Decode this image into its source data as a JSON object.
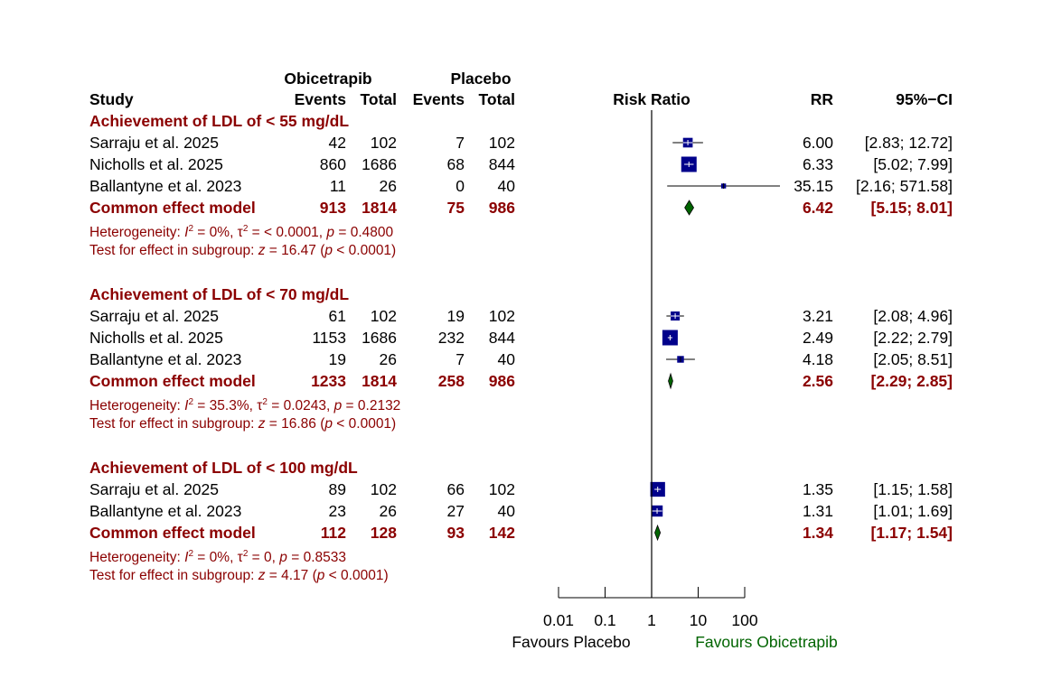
{
  "chart_data": {
    "type": "forest",
    "title": "",
    "xlabel": "Risk Ratio",
    "scale": "log",
    "xlim": [
      0.01,
      100
    ],
    "xticks": [
      "0.01",
      "0.1",
      "1",
      "10",
      "100"
    ],
    "xtick_values": [
      0.01,
      0.1,
      1,
      10,
      100
    ],
    "favours_left": "Favours Placebo",
    "favours_right": "Favours Obicetrapib",
    "header": {
      "group1": "Obicetrapib",
      "group2": "Placebo",
      "study": "Study",
      "events": "Events",
      "total": "Total",
      "effect": "Risk Ratio",
      "rr": "RR",
      "ci": "95%−CI"
    },
    "subgroups": [
      {
        "name": "Achievement of LDL of < 55 mg/dL",
        "studies": [
          {
            "study": "Sarraju et al. 2025",
            "e1": "42",
            "n1": "102",
            "e2": "7",
            "n2": "102",
            "rr_text": "6.00",
            "ci_text": "[2.83; 12.72]",
            "rr": 6.0,
            "lo": 2.83,
            "hi": 12.72,
            "weight": 0.3
          },
          {
            "study": "Nicholls et al. 2025",
            "e1": "860",
            "n1": "1686",
            "e2": "68",
            "n2": "844",
            "rr_text": "6.33",
            "ci_text": "[5.02;  7.99]",
            "rr": 6.33,
            "lo": 5.02,
            "hi": 7.99,
            "weight": 1.0
          },
          {
            "study": "Ballantyne et al. 2023",
            "e1": "11",
            "n1": "26",
            "e2": "0",
            "n2": "40",
            "rr_text": "35.15",
            "ci_text": "[2.16; 571.58]",
            "rr": 35.15,
            "lo": 2.16,
            "hi": 571.58,
            "weight": 0.03
          }
        ],
        "common": {
          "label": "Common effect model",
          "e1": "913",
          "n1": "1814",
          "e2": "75",
          "n2": "986",
          "rr_text": "6.42",
          "ci_text": "[5.15;  8.01]",
          "rr": 6.42,
          "lo": 5.15,
          "hi": 8.01
        },
        "het_prefix": "Heterogeneity: ",
        "het_i2": "I",
        "het_i2_value": " = 0%, ",
        "het_tau": "τ",
        "het_tau_value": " = < 0.0001, ",
        "het_p": "p",
        "het_p_value": " = 0.4800",
        "test_prefix": "Test for effect in subgroup: ",
        "test_z": "z",
        "test_z_value": " = 16.47 (",
        "test_p": "p",
        "test_p_value": " < 0.0001)"
      },
      {
        "name": "Achievement of LDL of < 70 mg/dL",
        "studies": [
          {
            "study": "Sarraju et al. 2025",
            "e1": "61",
            "n1": "102",
            "e2": "19",
            "n2": "102",
            "rr_text": "3.21",
            "ci_text": "[2.08;  4.96]",
            "rr": 3.21,
            "lo": 2.08,
            "hi": 4.96,
            "weight": 0.25
          },
          {
            "study": "Nicholls et al. 2025",
            "e1": "1153",
            "n1": "1686",
            "e2": "232",
            "n2": "844",
            "rr_text": "2.49",
            "ci_text": "[2.22;  2.79]",
            "rr": 2.49,
            "lo": 2.22,
            "hi": 2.79,
            "weight": 1.0
          },
          {
            "study": "Ballantyne et al. 2023",
            "e1": "19",
            "n1": "26",
            "e2": "7",
            "n2": "40",
            "rr_text": "4.18",
            "ci_text": "[2.05;  8.51]",
            "rr": 4.18,
            "lo": 2.05,
            "hi": 8.51,
            "weight": 0.1
          }
        ],
        "common": {
          "label": "Common effect model",
          "e1": "1233",
          "n1": "1814",
          "e2": "258",
          "n2": "986",
          "rr_text": "2.56",
          "ci_text": "[2.29;  2.85]",
          "rr": 2.56,
          "lo": 2.29,
          "hi": 2.85
        },
        "het_prefix": "Heterogeneity: ",
        "het_i2": "I",
        "het_i2_value": " = 35.3%, ",
        "het_tau": "τ",
        "het_tau_value": " = 0.0243, ",
        "het_p": "p",
        "het_p_value": " = 0.2132",
        "test_prefix": "Test for effect in subgroup: ",
        "test_z": "z",
        "test_z_value": " = 16.86 (",
        "test_p": "p",
        "test_p_value": " < 0.0001)"
      },
      {
        "name": "Achievement of LDL of < 100 mg/dL",
        "studies": [
          {
            "study": "Sarraju et al. 2025",
            "e1": "89",
            "n1": "102",
            "e2": "66",
            "n2": "102",
            "rr_text": "1.35",
            "ci_text": "[1.15;  1.58]",
            "rr": 1.35,
            "lo": 1.15,
            "hi": 1.58,
            "weight": 0.9
          },
          {
            "study": "Ballantyne et al. 2023",
            "e1": "23",
            "n1": "26",
            "e2": "27",
            "n2": "40",
            "rr_text": "1.31",
            "ci_text": "[1.01;  1.69]",
            "rr": 1.31,
            "lo": 1.01,
            "hi": 1.69,
            "weight": 0.45
          }
        ],
        "common": {
          "label": "Common effect model",
          "e1": "112",
          "n1": "128",
          "e2": "93",
          "n2": "142",
          "rr_text": "1.34",
          "ci_text": "[1.17;  1.54]",
          "rr": 1.34,
          "lo": 1.17,
          "hi": 1.54
        },
        "het_prefix": "Heterogeneity: ",
        "het_i2": "I",
        "het_i2_value": " = 0%, ",
        "het_tau": "τ",
        "het_tau_value": " = 0, ",
        "het_p": "p",
        "het_p_value": " = 0.8533",
        "test_prefix": "Test for effect in subgroup: ",
        "test_z": "z",
        "test_z_value": " = 4.17 (",
        "test_p": "p",
        "test_p_value": " < 0.0001)"
      }
    ]
  },
  "colors": {
    "subgroup": "#8b0000",
    "square": "#00008b",
    "diamond": "#006400",
    "favours_right": "#006400"
  }
}
